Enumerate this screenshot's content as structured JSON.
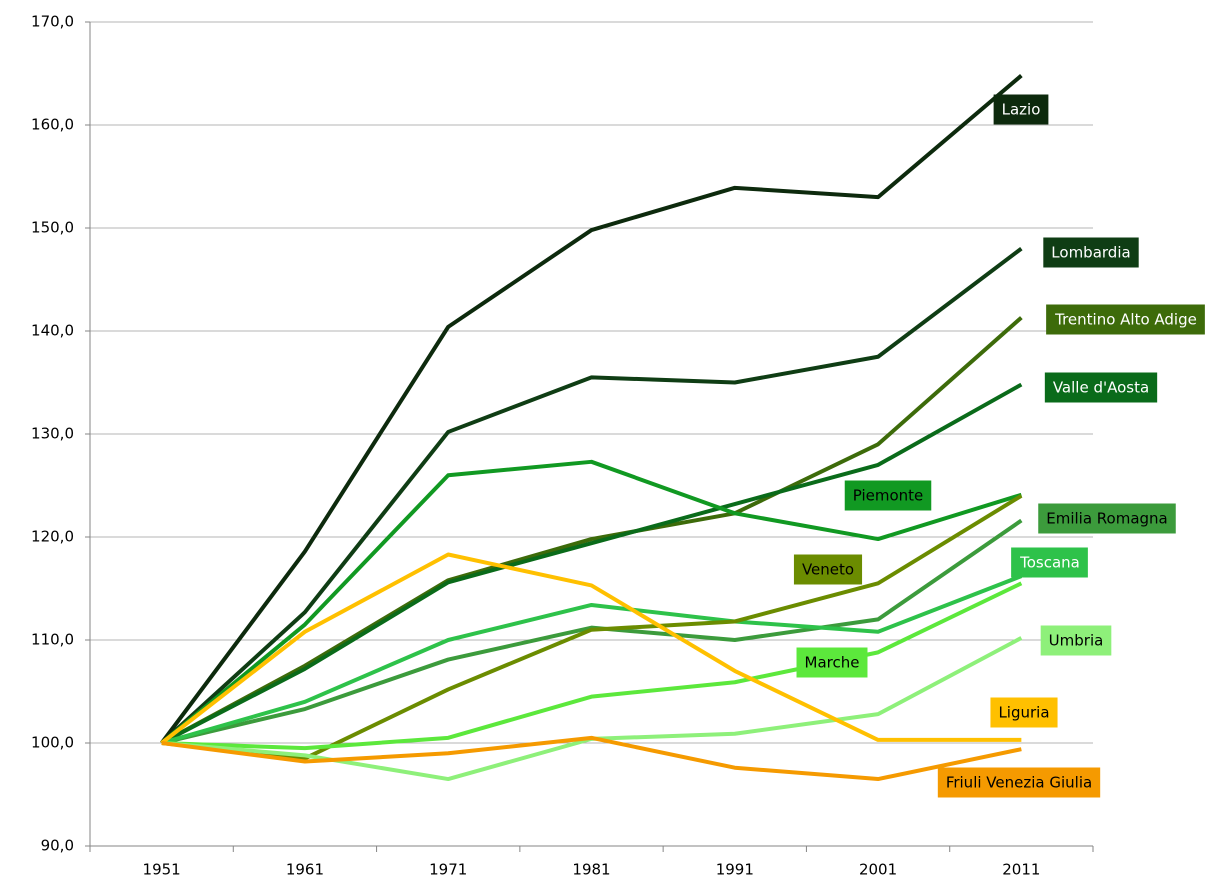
{
  "chart_data": {
    "type": "line",
    "categories": [
      "1951",
      "1961",
      "1971",
      "1981",
      "1991",
      "2001",
      "2011"
    ],
    "ylim": [
      90,
      170
    ],
    "yticks": [
      {
        "value": 90,
        "label": "90,0"
      },
      {
        "value": 100,
        "label": "100,0"
      },
      {
        "value": 110,
        "label": "110,0"
      },
      {
        "value": 120,
        "label": "120,0"
      },
      {
        "value": 130,
        "label": "130,0"
      },
      {
        "value": 140,
        "label": "140,0"
      },
      {
        "value": 150,
        "label": "150,0"
      },
      {
        "value": 160,
        "label": "160,0"
      },
      {
        "value": 170,
        "label": "170,0"
      }
    ],
    "grid": true,
    "series": [
      {
        "name": "Lazio",
        "color": "#0d2a0d",
        "values": [
          100,
          118.6,
          140.4,
          149.8,
          153.9,
          153.0,
          164.8
        ]
      },
      {
        "name": "Lombardia",
        "color": "#0f3d14",
        "values": [
          100,
          112.7,
          130.2,
          135.5,
          135.0,
          137.5,
          148.0
        ]
      },
      {
        "name": "Trentino Alto Adige",
        "color": "#3d6b0a",
        "values": [
          100,
          107.5,
          115.8,
          119.8,
          122.3,
          129.0,
          141.3
        ]
      },
      {
        "name": "Valle d'Aosta",
        "color": "#0a6b1a",
        "values": [
          100,
          107.2,
          115.6,
          119.4,
          123.2,
          127.0,
          134.8
        ]
      },
      {
        "name": "Piemonte",
        "color": "#119922",
        "values": [
          100,
          111.5,
          126.0,
          127.3,
          122.3,
          119.8,
          124.1
        ]
      },
      {
        "name": "Emilia Romagna",
        "color": "#3c9b3c",
        "values": [
          100,
          103.3,
          108.1,
          111.2,
          110.0,
          112.0,
          121.6
        ]
      },
      {
        "name": "Toscana",
        "color": "#2ec24a",
        "values": [
          100,
          104.0,
          110.0,
          113.4,
          111.8,
          110.8,
          116.2
        ]
      },
      {
        "name": "Veneto",
        "color": "#6b8c00",
        "values": [
          100,
          98.5,
          105.2,
          111.0,
          111.8,
          115.5,
          124.0
        ]
      },
      {
        "name": "Marche",
        "color": "#5ce83c",
        "values": [
          100,
          99.5,
          100.5,
          104.5,
          105.9,
          108.8,
          115.5
        ]
      },
      {
        "name": "Umbria",
        "color": "#8ef07a",
        "values": [
          100,
          98.8,
          96.5,
          100.4,
          100.9,
          102.8,
          110.2
        ]
      },
      {
        "name": "Liguria",
        "color": "#ffc000",
        "values": [
          100,
          110.8,
          118.3,
          115.3,
          107.0,
          100.3,
          100.3
        ]
      },
      {
        "name": "Friuli Venezia Giulia",
        "color": "#f59a00",
        "values": [
          100,
          98.2,
          99.0,
          100.5,
          97.6,
          96.5,
          99.4
        ]
      }
    ]
  }
}
